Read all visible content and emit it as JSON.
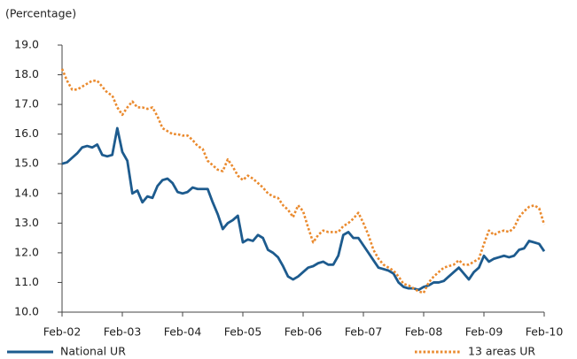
{
  "chart_data": {
    "type": "line",
    "y_label": "(Percentage)",
    "categories": [
      "Feb-02",
      null,
      null,
      null,
      null,
      null,
      null,
      null,
      null,
      null,
      null,
      null,
      "Feb-03",
      null,
      null,
      null,
      null,
      null,
      null,
      null,
      null,
      null,
      null,
      null,
      "Feb-04",
      null,
      null,
      null,
      null,
      null,
      null,
      null,
      null,
      null,
      null,
      null,
      "Feb-05",
      null,
      null,
      null,
      null,
      null,
      null,
      null,
      null,
      null,
      null,
      null,
      "Feb-06",
      null,
      null,
      null,
      null,
      null,
      null,
      null,
      null,
      null,
      null,
      null,
      "Feb-07",
      null,
      null,
      null,
      null,
      null,
      null,
      null,
      null,
      null,
      null,
      null,
      "Feb-08",
      null,
      null,
      null,
      null,
      null,
      null,
      null,
      null,
      null,
      null,
      null,
      "Feb-09",
      null,
      null,
      null,
      null,
      null,
      null,
      null,
      null,
      null,
      null,
      null,
      "Feb-10"
    ],
    "series": [
      {
        "name": "National UR",
        "color": "#1d5b8e",
        "style": "solid",
        "values": [
          15.0,
          15.05,
          15.2,
          15.35,
          15.55,
          15.6,
          15.55,
          15.65,
          15.3,
          15.25,
          15.3,
          16.2,
          15.4,
          15.1,
          14.0,
          14.1,
          13.7,
          13.9,
          13.85,
          14.25,
          14.45,
          14.5,
          14.35,
          14.05,
          14.0,
          14.05,
          14.2,
          14.15,
          14.15,
          14.15,
          13.7,
          13.3,
          12.8,
          13.0,
          13.1,
          13.25,
          12.35,
          12.45,
          12.4,
          12.6,
          12.5,
          12.1,
          12.0,
          11.85,
          11.55,
          11.2,
          11.1,
          11.2,
          11.35,
          11.5,
          11.55,
          11.65,
          11.7,
          11.6,
          11.6,
          11.9,
          12.6,
          12.7,
          12.5,
          12.5,
          12.25,
          12.0,
          11.75,
          11.5,
          11.45,
          11.4,
          11.3,
          11.0,
          10.85,
          10.8,
          10.8,
          10.75,
          10.85,
          10.9,
          11.0,
          11.0,
          11.05,
          11.2,
          11.35,
          11.5,
          11.3,
          11.1,
          11.35,
          11.5,
          11.9,
          11.7,
          11.8,
          11.85,
          11.9,
          11.85,
          11.9,
          12.1,
          12.15,
          12.4,
          12.35,
          12.3,
          12.05
        ]
      },
      {
        "name": "13 areas UR",
        "color": "#ea8a2e",
        "style": "dotted",
        "values": [
          18.2,
          17.8,
          17.5,
          17.5,
          17.6,
          17.7,
          17.8,
          17.8,
          17.6,
          17.4,
          17.3,
          16.9,
          16.65,
          16.9,
          17.1,
          16.9,
          16.9,
          16.85,
          16.9,
          16.6,
          16.2,
          16.1,
          16.0,
          16.0,
          15.95,
          15.95,
          15.8,
          15.6,
          15.5,
          15.1,
          14.95,
          14.8,
          14.75,
          15.15,
          14.9,
          14.6,
          14.45,
          14.6,
          14.5,
          14.35,
          14.2,
          14.0,
          13.9,
          13.85,
          13.6,
          13.45,
          13.2,
          13.6,
          13.4,
          12.85,
          12.35,
          12.6,
          12.75,
          12.7,
          12.7,
          12.7,
          12.9,
          13.0,
          13.15,
          13.35,
          13.0,
          12.6,
          12.1,
          11.8,
          11.6,
          11.5,
          11.4,
          11.2,
          10.95,
          10.9,
          10.8,
          10.7,
          10.65,
          11.0,
          11.2,
          11.35,
          11.5,
          11.55,
          11.6,
          11.75,
          11.6,
          11.6,
          11.7,
          11.8,
          12.3,
          12.75,
          12.6,
          12.7,
          12.75,
          12.7,
          12.85,
          13.2,
          13.4,
          13.55,
          13.6,
          13.5,
          12.95
        ]
      }
    ],
    "ylim": [
      10,
      19
    ],
    "yticks": [
      {
        "value": 10,
        "label": "10.0"
      },
      {
        "value": 11,
        "label": "11.0"
      },
      {
        "value": 12,
        "label": "12.0"
      },
      {
        "value": 13,
        "label": "13.0"
      },
      {
        "value": 14,
        "label": "14.0"
      },
      {
        "value": 15,
        "label": "15.0"
      },
      {
        "value": 16,
        "label": "16.0"
      },
      {
        "value": 17,
        "label": "17.0"
      },
      {
        "value": 18,
        "label": "18.0"
      },
      {
        "value": 19,
        "label": "19.0"
      }
    ],
    "grid": false
  }
}
